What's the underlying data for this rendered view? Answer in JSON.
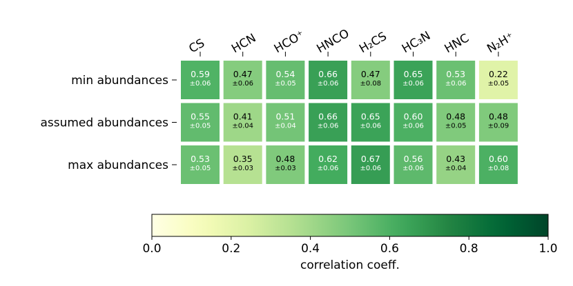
{
  "chart_data": {
    "type": "heatmap",
    "columns": [
      "CS",
      "HCN",
      "HCO⁺",
      "HNCO",
      "H₂CS",
      "HC₃N",
      "HNC",
      "N₂H⁺"
    ],
    "rows": [
      "min abundances",
      "assumed abundances",
      "max abundances"
    ],
    "values": [
      [
        0.59,
        0.47,
        0.54,
        0.66,
        0.47,
        0.65,
        0.53,
        0.22
      ],
      [
        0.55,
        0.41,
        0.51,
        0.66,
        0.65,
        0.6,
        0.48,
        0.48
      ],
      [
        0.53,
        0.35,
        0.48,
        0.62,
        0.67,
        0.56,
        0.43,
        0.6
      ]
    ],
    "errors": [
      [
        0.06,
        0.06,
        0.05,
        0.06,
        0.08,
        0.06,
        0.06,
        0.05
      ],
      [
        0.05,
        0.04,
        0.04,
        0.06,
        0.06,
        0.06,
        0.05,
        0.09
      ],
      [
        0.05,
        0.03,
        0.03,
        0.06,
        0.06,
        0.06,
        0.04,
        0.08
      ]
    ],
    "value_labels": [
      [
        "0.59",
        "0.47",
        "0.54",
        "0.66",
        "0.47",
        "0.65",
        "0.53",
        "0.22"
      ],
      [
        "0.55",
        "0.41",
        "0.51",
        "0.66",
        "0.65",
        "0.60",
        "0.48",
        "0.48"
      ],
      [
        "0.53",
        "0.35",
        "0.48",
        "0.62",
        "0.67",
        "0.56",
        "0.43",
        "0.60"
      ]
    ],
    "error_labels": [
      [
        "±0.06",
        "±0.06",
        "±0.05",
        "±0.06",
        "±0.08",
        "±0.06",
        "±0.06",
        "±0.05"
      ],
      [
        "±0.05",
        "±0.04",
        "±0.04",
        "±0.06",
        "±0.06",
        "±0.06",
        "±0.05",
        "±0.09"
      ],
      [
        "±0.05",
        "±0.03",
        "±0.03",
        "±0.06",
        "±0.06",
        "±0.06",
        "±0.04",
        "±0.08"
      ]
    ],
    "colormap": "YlGn",
    "colorbar": {
      "label": "correlation coeff.",
      "range": [
        0.0,
        1.0
      ],
      "ticks": [
        0.0,
        0.2,
        0.4,
        0.6,
        0.8,
        1.0
      ],
      "tick_labels": [
        "0.0",
        "0.2",
        "0.4",
        "0.6",
        "0.8",
        "1.0"
      ],
      "orientation": "horizontal"
    }
  }
}
